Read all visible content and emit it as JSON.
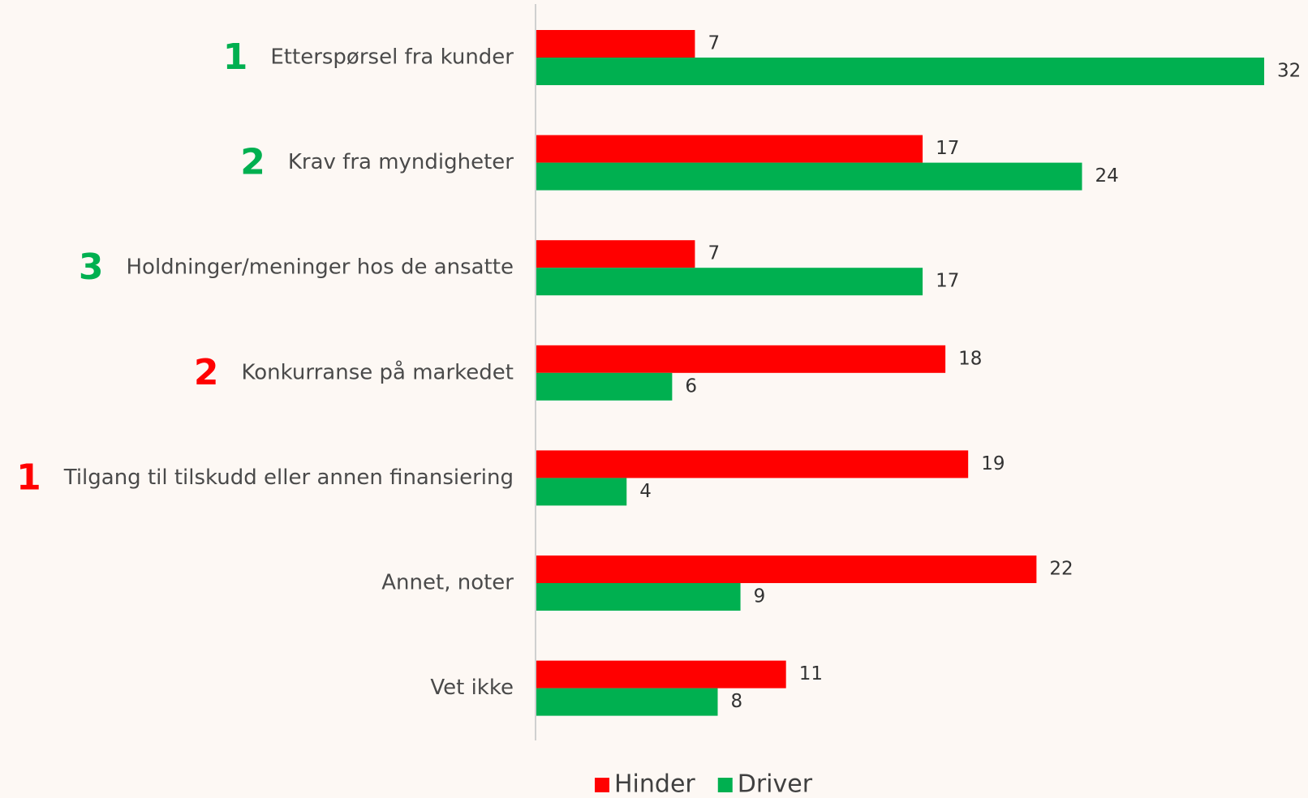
{
  "chart_data": {
    "type": "hbar",
    "categories": [
      "Etterspørsel fra kunder",
      "Krav fra myndigheter",
      "Holdninger/meninger hos de ansatte",
      "Konkurranse på markedet",
      "Tilgang til tilskudd eller annen finansiering",
      "Annet, noter",
      "Vet ikke"
    ],
    "rank_labels": [
      "1",
      "2",
      "3",
      "2",
      "1",
      null,
      null
    ],
    "rank_colors": [
      "#00b050",
      "#00b050",
      "#00b050",
      "#ff0000",
      "#ff0000",
      null,
      null
    ],
    "series": [
      {
        "name": "Hinder",
        "color": "#ff0000",
        "values": [
          7,
          17,
          7,
          18,
          19,
          22,
          11
        ]
      },
      {
        "name": "Driver",
        "color": "#00b050",
        "values": [
          32,
          24,
          17,
          6,
          4,
          9,
          8
        ]
      }
    ],
    "xlim": [
      0,
      32
    ],
    "legend": "bottom"
  }
}
